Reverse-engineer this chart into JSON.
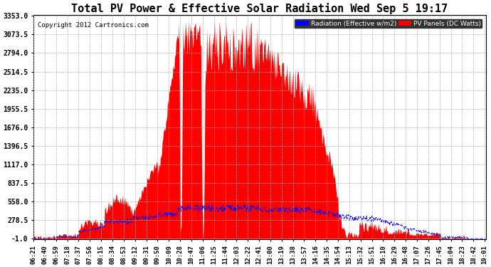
{
  "title": "Total PV Power & Effective Solar Radiation Wed Sep 5 19:17",
  "copyright": "Copyright 2012 Cartronics.com",
  "legend_blue": "Radiation (Effective w/m2)",
  "legend_red": "PV Panels (DC Watts)",
  "y_min": -1.0,
  "y_max": 3353.0,
  "y_ticks": [
    -1.0,
    278.5,
    558.0,
    837.5,
    1117.0,
    1396.5,
    1676.0,
    1955.5,
    2235.0,
    2514.5,
    2794.0,
    3073.5,
    3353.0
  ],
  "bg_color": "#ffffff",
  "plot_bg": "#ffffff",
  "title_color": "#000000",
  "grid_color": "#aaaaaa",
  "fill_color": "#ff0000",
  "line_color": "#0000ff",
  "x_start_hour": 6,
  "x_start_min": 21,
  "x_end_hour": 19,
  "x_end_min": 3,
  "title_fontsize": 11,
  "tick_fontsize": 7,
  "copyright_fontsize": 6.5
}
